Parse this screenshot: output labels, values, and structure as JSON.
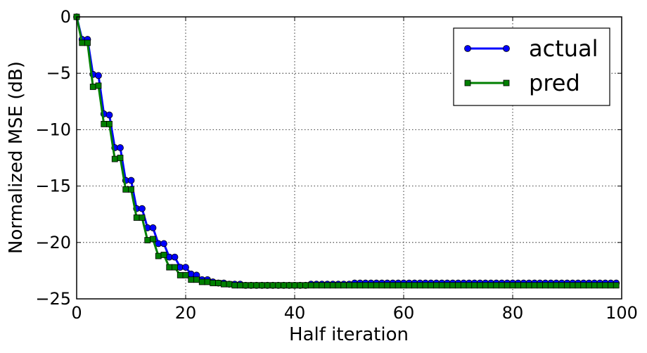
{
  "chart_data": {
    "type": "line",
    "title": "",
    "xlabel": "Half iteration",
    "ylabel": "Normalized MSE (dB)",
    "xlim": [
      0,
      100
    ],
    "ylim": [
      -25,
      0
    ],
    "xticks": [
      "0",
      "20",
      "40",
      "60",
      "80",
      "100"
    ],
    "yticks": [
      "0",
      "−5",
      "−10",
      "−15",
      "−20",
      "−25"
    ],
    "grid": true,
    "legend_position": "top-right",
    "series": [
      {
        "name": "actual",
        "color": "#0000ff",
        "marker": "circle",
        "x": [
          0,
          1,
          2,
          3,
          4,
          5,
          6,
          7,
          8,
          9,
          10,
          11,
          12,
          13,
          14,
          15,
          16,
          17,
          18,
          19,
          20,
          21,
          22,
          23,
          24,
          25,
          26,
          27,
          28,
          29,
          30,
          31,
          32,
          33,
          34,
          35,
          36,
          37,
          38,
          39,
          40,
          41,
          42,
          43,
          44,
          45,
          46,
          47,
          48,
          49,
          50,
          51,
          52,
          53,
          54,
          55,
          56,
          57,
          58,
          59,
          60,
          61,
          62,
          63,
          64,
          65,
          66,
          67,
          68,
          69,
          70,
          71,
          72,
          73,
          74,
          75,
          76,
          77,
          78,
          79,
          80,
          81,
          82,
          83,
          84,
          85,
          86,
          87,
          88,
          89,
          90,
          91,
          92,
          93,
          94,
          95,
          96,
          97,
          98,
          99
        ],
        "y": [
          0,
          -2.0,
          -2.0,
          -5.1,
          -5.2,
          -8.6,
          -8.7,
          -11.6,
          -11.6,
          -14.5,
          -14.5,
          -17.0,
          -17.0,
          -18.7,
          -18.7,
          -20.1,
          -20.1,
          -21.3,
          -21.3,
          -22.2,
          -22.2,
          -22.8,
          -22.9,
          -23.3,
          -23.3,
          -23.5,
          -23.6,
          -23.6,
          -23.7,
          -23.7,
          -23.7,
          -23.8,
          -23.8,
          -23.8,
          -23.8,
          -23.8,
          -23.8,
          -23.8,
          -23.8,
          -23.8,
          -23.8,
          -23.8,
          -23.8,
          -23.7,
          -23.7,
          -23.7,
          -23.7,
          -23.7,
          -23.7,
          -23.7,
          -23.7,
          -23.6,
          -23.6,
          -23.6,
          -23.6,
          -23.6,
          -23.6,
          -23.6,
          -23.6,
          -23.6,
          -23.6,
          -23.6,
          -23.6,
          -23.6,
          -23.6,
          -23.6,
          -23.6,
          -23.6,
          -23.6,
          -23.6,
          -23.6,
          -23.6,
          -23.6,
          -23.6,
          -23.6,
          -23.6,
          -23.6,
          -23.6,
          -23.6,
          -23.6,
          -23.6,
          -23.6,
          -23.6,
          -23.6,
          -23.6,
          -23.6,
          -23.6,
          -23.6,
          -23.6,
          -23.6,
          -23.6,
          -23.6,
          -23.6,
          -23.6,
          -23.6,
          -23.6,
          -23.6,
          -23.6,
          -23.6,
          -23.6
        ]
      },
      {
        "name": "pred",
        "color": "#007f00",
        "marker": "square",
        "x": [
          0,
          1,
          2,
          3,
          4,
          5,
          6,
          7,
          8,
          9,
          10,
          11,
          12,
          13,
          14,
          15,
          16,
          17,
          18,
          19,
          20,
          21,
          22,
          23,
          24,
          25,
          26,
          27,
          28,
          29,
          30,
          31,
          32,
          33,
          34,
          35,
          36,
          37,
          38,
          39,
          40,
          41,
          42,
          43,
          44,
          45,
          46,
          47,
          48,
          49,
          50,
          51,
          52,
          53,
          54,
          55,
          56,
          57,
          58,
          59,
          60,
          61,
          62,
          63,
          64,
          65,
          66,
          67,
          68,
          69,
          70,
          71,
          72,
          73,
          74,
          75,
          76,
          77,
          78,
          79,
          80,
          81,
          82,
          83,
          84,
          85,
          86,
          87,
          88,
          89,
          90,
          91,
          92,
          93,
          94,
          95,
          96,
          97,
          98,
          99
        ],
        "y": [
          0,
          -2.3,
          -2.3,
          -6.2,
          -6.1,
          -9.5,
          -9.5,
          -12.6,
          -12.5,
          -15.3,
          -15.3,
          -17.8,
          -17.8,
          -19.8,
          -19.7,
          -21.2,
          -21.1,
          -22.2,
          -22.2,
          -22.9,
          -22.9,
          -23.3,
          -23.3,
          -23.5,
          -23.5,
          -23.6,
          -23.6,
          -23.7,
          -23.7,
          -23.8,
          -23.8,
          -23.8,
          -23.8,
          -23.8,
          -23.8,
          -23.8,
          -23.8,
          -23.8,
          -23.8,
          -23.8,
          -23.8,
          -23.8,
          -23.8,
          -23.8,
          -23.8,
          -23.8,
          -23.8,
          -23.8,
          -23.8,
          -23.8,
          -23.8,
          -23.8,
          -23.8,
          -23.8,
          -23.8,
          -23.8,
          -23.8,
          -23.8,
          -23.8,
          -23.8,
          -23.8,
          -23.8,
          -23.8,
          -23.8,
          -23.8,
          -23.8,
          -23.8,
          -23.8,
          -23.8,
          -23.8,
          -23.8,
          -23.8,
          -23.8,
          -23.8,
          -23.8,
          -23.8,
          -23.8,
          -23.8,
          -23.8,
          -23.8,
          -23.8,
          -23.8,
          -23.8,
          -23.8,
          -23.8,
          -23.8,
          -23.8,
          -23.8,
          -23.8,
          -23.8,
          -23.8,
          -23.8,
          -23.8,
          -23.8,
          -23.8,
          -23.8,
          -23.8,
          -23.8,
          -23.8,
          -23.8
        ]
      }
    ]
  }
}
